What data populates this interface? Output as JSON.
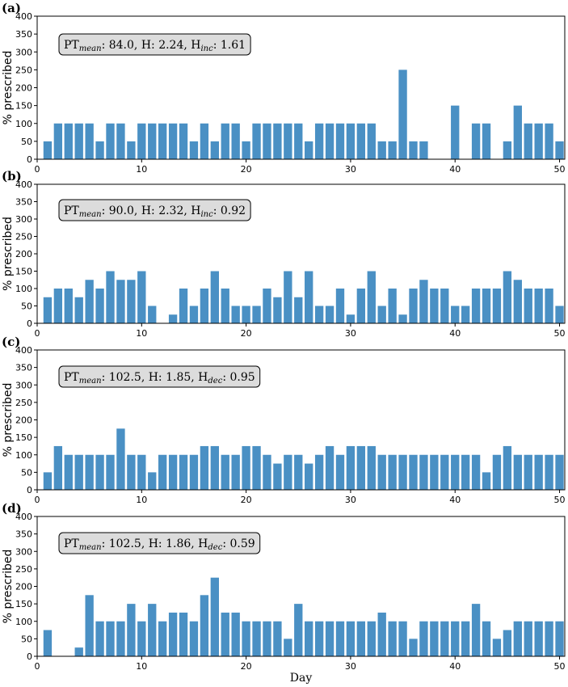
{
  "chart_data": [
    {
      "type": "bar",
      "panel_label": "(a)",
      "annotation": {
        "pt_label": "PT",
        "pt_sub": "mean",
        "pt_value": ": 84.0, H: 2.24, H",
        "h_sub": "inc",
        "h_value": ": 1.61"
      },
      "ylabel": "% prescribed",
      "xlabel": "",
      "ylim": [
        0,
        400
      ],
      "xlim": [
        0,
        50.5
      ],
      "yticks": [
        0,
        50,
        100,
        150,
        200,
        250,
        300,
        350,
        400
      ],
      "xticks": [
        0,
        10,
        20,
        30,
        40,
        50
      ],
      "x": [
        1,
        2,
        3,
        4,
        5,
        6,
        7,
        8,
        9,
        10,
        11,
        12,
        13,
        14,
        15,
        16,
        17,
        18,
        19,
        20,
        21,
        22,
        23,
        24,
        25,
        26,
        27,
        28,
        29,
        30,
        31,
        32,
        33,
        34,
        35,
        36,
        37,
        38,
        39,
        40,
        41,
        42,
        43,
        44,
        45,
        46,
        47,
        48,
        49,
        50
      ],
      "values": [
        50,
        100,
        100,
        100,
        100,
        50,
        100,
        100,
        50,
        100,
        100,
        100,
        100,
        100,
        50,
        100,
        50,
        100,
        100,
        50,
        100,
        100,
        100,
        100,
        100,
        50,
        100,
        100,
        100,
        100,
        100,
        100,
        50,
        50,
        250,
        50,
        50,
        0,
        0,
        150,
        0,
        100,
        100,
        0,
        50,
        150,
        100,
        100,
        100,
        50
      ]
    },
    {
      "type": "bar",
      "panel_label": "(b)",
      "annotation": {
        "pt_label": "PT",
        "pt_sub": "mean",
        "pt_value": ": 90.0, H: 2.32, H",
        "h_sub": "inc",
        "h_value": ": 0.92"
      },
      "ylabel": "% prescribed",
      "xlabel": "",
      "ylim": [
        0,
        400
      ],
      "xlim": [
        0,
        50.5
      ],
      "yticks": [
        0,
        50,
        100,
        150,
        200,
        250,
        300,
        350,
        400
      ],
      "xticks": [
        0,
        10,
        20,
        30,
        40,
        50
      ],
      "x": [
        1,
        2,
        3,
        4,
        5,
        6,
        7,
        8,
        9,
        10,
        11,
        12,
        13,
        14,
        15,
        16,
        17,
        18,
        19,
        20,
        21,
        22,
        23,
        24,
        25,
        26,
        27,
        28,
        29,
        30,
        31,
        32,
        33,
        34,
        35,
        36,
        37,
        38,
        39,
        40,
        41,
        42,
        43,
        44,
        45,
        46,
        47,
        48,
        49,
        50
      ],
      "values": [
        75,
        100,
        100,
        75,
        125,
        100,
        150,
        125,
        125,
        150,
        50,
        0,
        25,
        100,
        50,
        100,
        150,
        100,
        50,
        50,
        50,
        100,
        75,
        150,
        75,
        150,
        50,
        50,
        100,
        25,
        100,
        150,
        50,
        100,
        25,
        100,
        125,
        100,
        100,
        50,
        50,
        100,
        100,
        100,
        150,
        125,
        100,
        100,
        100,
        50
      ]
    },
    {
      "type": "bar",
      "panel_label": "(c)",
      "annotation": {
        "pt_label": "PT",
        "pt_sub": "mean",
        "pt_value": ": 102.5, H: 1.85, H",
        "h_sub": "dec",
        "h_value": ": 0.95"
      },
      "ylabel": "% prescribed",
      "xlabel": "",
      "ylim": [
        0,
        400
      ],
      "xlim": [
        0,
        50.5
      ],
      "yticks": [
        0,
        50,
        100,
        150,
        200,
        250,
        300,
        350,
        400
      ],
      "xticks": [
        0,
        10,
        20,
        30,
        40,
        50
      ],
      "x": [
        1,
        2,
        3,
        4,
        5,
        6,
        7,
        8,
        9,
        10,
        11,
        12,
        13,
        14,
        15,
        16,
        17,
        18,
        19,
        20,
        21,
        22,
        23,
        24,
        25,
        26,
        27,
        28,
        29,
        30,
        31,
        32,
        33,
        34,
        35,
        36,
        37,
        38,
        39,
        40,
        41,
        42,
        43,
        44,
        45,
        46,
        47,
        48,
        49,
        50
      ],
      "values": [
        50,
        125,
        100,
        100,
        100,
        100,
        100,
        175,
        100,
        100,
        50,
        100,
        100,
        100,
        100,
        125,
        125,
        100,
        100,
        125,
        125,
        100,
        75,
        100,
        100,
        75,
        100,
        125,
        100,
        125,
        125,
        125,
        100,
        100,
        100,
        100,
        100,
        100,
        100,
        100,
        100,
        100,
        50,
        100,
        125,
        100,
        100,
        100,
        100,
        100
      ]
    },
    {
      "type": "bar",
      "panel_label": "(d)",
      "annotation": {
        "pt_label": "PT",
        "pt_sub": "mean",
        "pt_value": ": 102.5, H: 1.86, H",
        "h_sub": "dec",
        "h_value": ": 0.59"
      },
      "ylabel": "% prescribed",
      "xlabel": "Day",
      "ylim": [
        0,
        400
      ],
      "xlim": [
        0,
        50.5
      ],
      "yticks": [
        0,
        50,
        100,
        150,
        200,
        250,
        300,
        350,
        400
      ],
      "xticks": [
        0,
        10,
        20,
        30,
        40,
        50
      ],
      "x": [
        1,
        2,
        3,
        4,
        5,
        6,
        7,
        8,
        9,
        10,
        11,
        12,
        13,
        14,
        15,
        16,
        17,
        18,
        19,
        20,
        21,
        22,
        23,
        24,
        25,
        26,
        27,
        28,
        29,
        30,
        31,
        32,
        33,
        34,
        35,
        36,
        37,
        38,
        39,
        40,
        41,
        42,
        43,
        44,
        45,
        46,
        47,
        48,
        49,
        50
      ],
      "values": [
        75,
        0,
        0,
        25,
        175,
        100,
        100,
        100,
        150,
        100,
        150,
        100,
        125,
        125,
        100,
        175,
        225,
        125,
        125,
        100,
        100,
        100,
        100,
        50,
        150,
        100,
        100,
        100,
        100,
        100,
        100,
        100,
        125,
        100,
        100,
        50,
        100,
        100,
        100,
        100,
        100,
        150,
        100,
        50,
        75,
        100,
        100,
        100,
        100,
        100
      ]
    }
  ],
  "colors": {
    "bar": "#4a90c4",
    "annotation_box": "#dcdcdc"
  }
}
